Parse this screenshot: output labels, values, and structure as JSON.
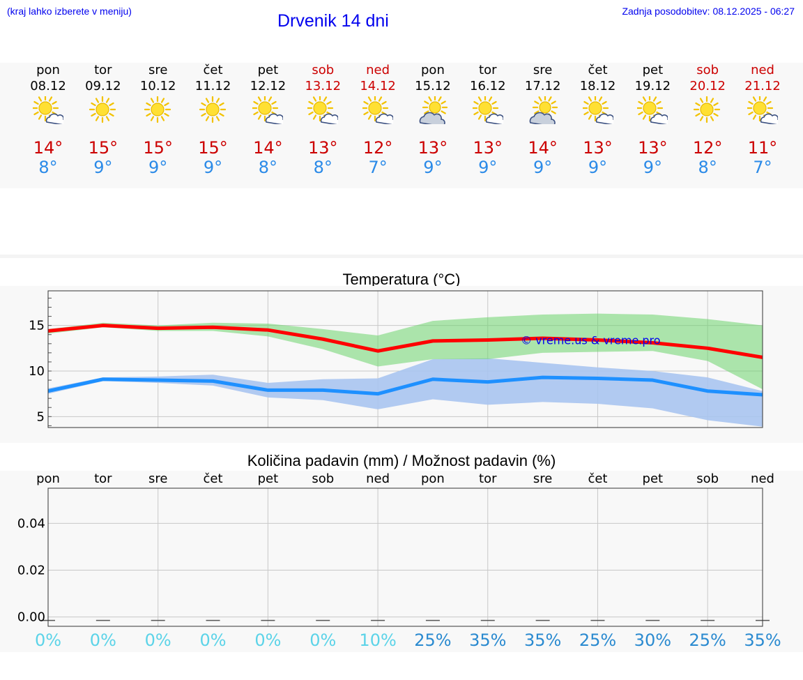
{
  "header": {
    "hint": "(kraj lahko izberete v meniju)",
    "title": "Drvenik 14 dni",
    "updated": "Zadnja posodobitev: 08.12.2025 - 06:27"
  },
  "forecast": [
    {
      "day": "pon",
      "date": "08.12",
      "weekend": false,
      "icon": "sun-cloud-icon",
      "max": "14°",
      "min": "8°"
    },
    {
      "day": "tor",
      "date": "09.12",
      "weekend": false,
      "icon": "sun-icon",
      "max": "15°",
      "min": "9°"
    },
    {
      "day": "sre",
      "date": "10.12",
      "weekend": false,
      "icon": "sun-icon",
      "max": "15°",
      "min": "9°"
    },
    {
      "day": "čet",
      "date": "11.12",
      "weekend": false,
      "icon": "sun-icon",
      "max": "15°",
      "min": "9°"
    },
    {
      "day": "pet",
      "date": "12.12",
      "weekend": false,
      "icon": "sun-cloud-icon",
      "max": "14°",
      "min": "8°"
    },
    {
      "day": "sob",
      "date": "13.12",
      "weekend": true,
      "icon": "sun-cloud-icon",
      "max": "13°",
      "min": "8°"
    },
    {
      "day": "ned",
      "date": "14.12",
      "weekend": true,
      "icon": "sun-cloud-icon",
      "max": "12°",
      "min": "7°"
    },
    {
      "day": "pon",
      "date": "15.12",
      "weekend": false,
      "icon": "cloud-sun-icon",
      "max": "13°",
      "min": "9°"
    },
    {
      "day": "tor",
      "date": "16.12",
      "weekend": false,
      "icon": "sun-cloud-icon",
      "max": "13°",
      "min": "9°"
    },
    {
      "day": "sre",
      "date": "17.12",
      "weekend": false,
      "icon": "cloud-sun-icon",
      "max": "14°",
      "min": "9°"
    },
    {
      "day": "čet",
      "date": "18.12",
      "weekend": false,
      "icon": "sun-cloud-icon",
      "max": "13°",
      "min": "9°"
    },
    {
      "day": "pet",
      "date": "19.12",
      "weekend": false,
      "icon": "sun-cloud-icon",
      "max": "13°",
      "min": "9°"
    },
    {
      "day": "sob",
      "date": "20.12",
      "weekend": true,
      "icon": "sun-icon",
      "max": "12°",
      "min": "8°"
    },
    {
      "day": "ned",
      "date": "21.12",
      "weekend": true,
      "icon": "sun-cloud-icon",
      "max": "11°",
      "min": "7°"
    }
  ],
  "colors": {
    "max_line": "#ff0000",
    "min_line": "#1e90ff",
    "max_band": "#a8e6a0",
    "min_band": "#a8c4f0",
    "overlap_band": "#7cc4a0",
    "max_text": "#cc0000",
    "min_text": "#2a8ae8",
    "chance_low": "#5bd3e8",
    "chance_high": "#2a8ad0"
  },
  "chart_data": [
    {
      "type": "line",
      "title": "Temperatura (°C)",
      "x": [
        0,
        1,
        2,
        3,
        4,
        5,
        6,
        7,
        8,
        9,
        10,
        11,
        12,
        13
      ],
      "ylim": [
        3.8,
        18.8
      ],
      "yticks": [
        5,
        10,
        15
      ],
      "watermark": "© vreme.us & vreme.pro",
      "series": [
        {
          "name": "max",
          "values": [
            14.4,
            15.0,
            14.7,
            14.8,
            14.5,
            13.5,
            12.2,
            13.3,
            13.4,
            13.6,
            13.4,
            13.1,
            12.5,
            11.5
          ]
        },
        {
          "name": "min",
          "values": [
            7.8,
            9.1,
            9.0,
            8.9,
            7.9,
            7.9,
            7.5,
            9.1,
            8.8,
            9.3,
            9.2,
            9.0,
            7.8,
            7.4
          ]
        }
      ],
      "bands": [
        {
          "name": "max_range",
          "low": [
            14.1,
            14.8,
            14.4,
            14.4,
            13.8,
            12.4,
            10.5,
            11.3,
            11.3,
            12.0,
            12.1,
            12.2,
            11.1,
            8.0
          ],
          "high": [
            14.6,
            15.3,
            15.0,
            15.3,
            15.2,
            14.6,
            13.9,
            15.5,
            15.9,
            16.2,
            16.3,
            16.2,
            15.7,
            15.0
          ]
        },
        {
          "name": "min_range",
          "low": [
            7.5,
            8.9,
            8.7,
            8.4,
            7.1,
            6.8,
            5.8,
            6.9,
            6.3,
            6.6,
            6.4,
            5.9,
            4.6,
            3.9
          ],
          "high": [
            8.1,
            9.3,
            9.4,
            9.6,
            8.7,
            9.1,
            9.2,
            11.3,
            11.4,
            10.9,
            10.4,
            10.0,
            9.3,
            7.8
          ]
        }
      ]
    },
    {
      "type": "bar",
      "title": "Količina padavin (mm) / Možnost padavin (%)",
      "categories": [
        "pon",
        "tor",
        "sre",
        "čet",
        "pet",
        "sob",
        "ned",
        "pon",
        "tor",
        "sre",
        "čet",
        "pet",
        "sob",
        "ned"
      ],
      "values": [
        0,
        0,
        0,
        0,
        0,
        0,
        0,
        0,
        0,
        0,
        0,
        0,
        0,
        0
      ],
      "ylim": [
        -0.004,
        0.055
      ],
      "yticks": [
        "0.00",
        "0.02",
        "0.04"
      ],
      "chance": [
        "0%",
        "0%",
        "0%",
        "0%",
        "0%",
        "0%",
        "10%",
        "25%",
        "35%",
        "35%",
        "25%",
        "30%",
        "25%",
        "35%"
      ]
    }
  ]
}
